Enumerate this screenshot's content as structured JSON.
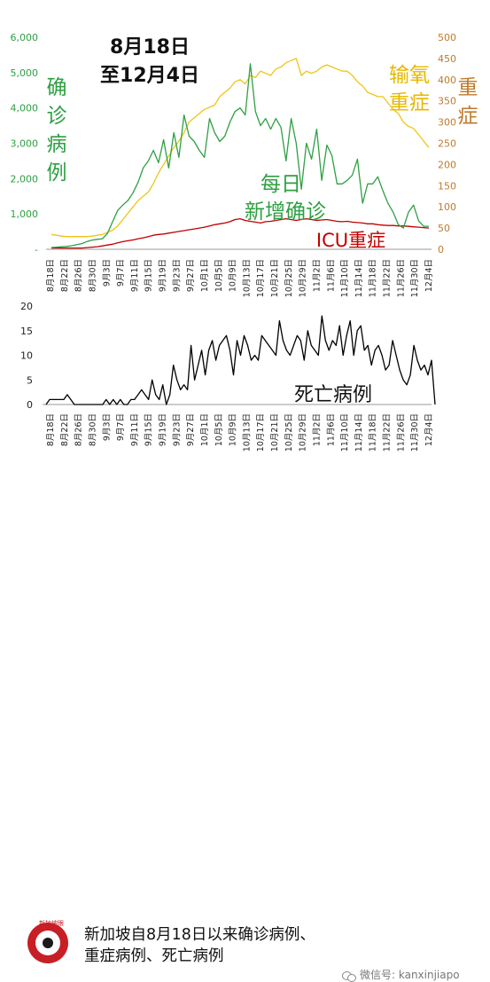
{
  "chart_data": [
    {
      "type": "line",
      "title_lines": [
        "8月18日",
        "至12月4日"
      ],
      "ylabel_left": [
        "确",
        "诊",
        "病",
        "例"
      ],
      "ylabel_right": [
        "重",
        "症"
      ],
      "left_axis": {
        "ticks": [
          0,
          1000,
          2000,
          3000,
          4000,
          5000,
          6000
        ],
        "tick_labels": [
          "-",
          "1,000",
          "2,000",
          "3,000",
          "4,000",
          "5,000",
          "6,000"
        ],
        "ylim": [
          0,
          6000
        ]
      },
      "right_axis": {
        "ticks": [
          0,
          50,
          100,
          150,
          200,
          250,
          300,
          350,
          400,
          450,
          500
        ],
        "tick_labels": [
          "0",
          "50",
          "100",
          "150",
          "200",
          "250",
          "300",
          "350",
          "400",
          "450",
          "500"
        ],
        "ylim": [
          0,
          500
        ]
      },
      "x_tick_labels": [
        "8月18日",
        "8月22日",
        "8月26日",
        "8月30日",
        "9月3日",
        "9月7日",
        "9月11日",
        "9月15日",
        "9月19日",
        "9月23日",
        "9月27日",
        "10月1日",
        "10月5日",
        "10月9日",
        "10月13日",
        "10月17日",
        "10月21日",
        "10月25日",
        "10月29日",
        "11月2日",
        "11月6日",
        "11月10日",
        "11月14日",
        "11月18日",
        "11月22日",
        "11月26日",
        "11月30日",
        "12月4日"
      ],
      "series": [
        {
          "name": "每日新增确诊",
          "label_lines": [
            "每日",
            "新增确诊"
          ],
          "axis": "left",
          "color": "#2ea043",
          "values": [
            50,
            60,
            70,
            80,
            100,
            130,
            160,
            220,
            260,
            280,
            300,
            450,
            780,
            1100,
            1250,
            1380,
            1600,
            1900,
            2300,
            2500,
            2800,
            2450,
            3100,
            2300,
            3300,
            2600,
            3800,
            3200,
            3050,
            2800,
            2600,
            3700,
            3300,
            3050,
            3200,
            3600,
            3900,
            4000,
            3800,
            5250,
            3900,
            3500,
            3700,
            3400,
            3700,
            3450,
            2500,
            3700,
            3000,
            1700,
            3000,
            2550,
            3400,
            1950,
            2950,
            2650,
            1850,
            1850,
            1950,
            2100,
            2550,
            1300,
            1850,
            1850,
            2050,
            1650,
            1300,
            1050,
            700,
            600,
            1050,
            1250,
            800,
            650,
            650
          ]
        },
        {
          "name": "输氧",
          "label_lines": [
            "输氧"
          ],
          "axis": "right",
          "color": "#f0c419",
          "values": [
            35,
            33,
            31,
            30,
            30,
            30,
            30,
            30,
            31,
            33,
            35,
            40,
            45,
            55,
            70,
            85,
            100,
            115,
            125,
            135,
            155,
            180,
            200,
            220,
            240,
            255,
            275,
            300,
            310,
            320,
            330,
            335,
            340,
            360,
            370,
            380,
            395,
            400,
            390,
            410,
            405,
            420,
            415,
            410,
            425,
            430,
            440,
            445,
            450,
            410,
            420,
            415,
            420,
            430,
            435,
            430,
            425,
            420,
            420,
            410,
            395,
            385,
            370,
            365,
            360,
            360,
            345,
            330,
            320,
            300,
            290,
            285,
            270,
            255,
            240
          ]
        },
        {
          "name": "ICU重症",
          "label_lines": [
            "ICU重症"
          ],
          "axis": "right",
          "color": "#c00000",
          "values": [
            3,
            3,
            3,
            3,
            3,
            3,
            3,
            4,
            5,
            6,
            8,
            10,
            12,
            15,
            18,
            20,
            22,
            25,
            27,
            30,
            33,
            35,
            36,
            38,
            40,
            42,
            44,
            46,
            48,
            50,
            52,
            55,
            58,
            60,
            62,
            65,
            70,
            72,
            68,
            66,
            64,
            62,
            65,
            66,
            68,
            70,
            72,
            70,
            68,
            70,
            72,
            70,
            68,
            69,
            70,
            68,
            66,
            65,
            66,
            64,
            63,
            62,
            60,
            60,
            58,
            57,
            56,
            56,
            55,
            55,
            54,
            53,
            52,
            51,
            50
          ]
        }
      ],
      "legend_text": [
        "重症"
      ]
    },
    {
      "type": "line",
      "ylabel": "",
      "ylim": [
        0,
        20
      ],
      "y_ticks": [
        0,
        5,
        10,
        15,
        20
      ],
      "y_tick_labels": [
        "0",
        "5",
        "10",
        "15",
        "20"
      ],
      "x_tick_labels": [
        "8月18日",
        "8月22日",
        "8月26日",
        "8月30日",
        "9月3日",
        "9月7日",
        "9月11日",
        "9月15日",
        "9月19日",
        "9月23日",
        "9月27日",
        "10月1日",
        "10月5日",
        "10月9日",
        "10月13日",
        "10月17日",
        "10月21日",
        "10月25日",
        "10月29日",
        "11月2日",
        "11月6日",
        "11月10日",
        "11月14日",
        "11月18日",
        "11月22日",
        "11月26日",
        "11月30日",
        "12月4日"
      ],
      "series": [
        {
          "name": "死亡病例",
          "color": "#000000",
          "values": [
            0,
            1,
            1,
            1,
            1,
            1,
            2,
            1,
            0,
            0,
            0,
            0,
            0,
            0,
            0,
            0,
            0,
            1,
            0,
            1,
            0,
            1,
            0,
            0,
            1,
            1,
            2,
            3,
            2,
            1,
            5,
            2,
            1,
            4,
            0,
            2,
            8,
            5,
            3,
            4,
            3,
            12,
            5,
            8,
            11,
            6,
            11,
            13,
            9,
            12,
            13,
            14,
            11,
            6,
            13,
            10,
            14,
            12,
            9,
            10,
            9,
            14,
            13,
            12,
            11,
            10,
            17,
            13,
            11,
            10,
            12,
            14,
            13,
            9,
            15,
            12,
            11,
            10,
            18,
            13,
            11,
            13,
            12,
            16,
            10,
            14,
            17,
            10,
            15,
            16,
            11,
            12,
            8,
            11,
            12,
            10,
            7,
            8,
            13,
            10,
            7,
            5,
            4,
            6,
            12,
            9,
            7,
            8,
            6,
            9,
            0
          ]
        }
      ]
    }
  ],
  "footer": {
    "logo_text": "新加坡眼",
    "caption_line1": "新加坡自8月18日以来确诊病例、",
    "caption_line2": "重症病例、死亡病例",
    "wechat_label": "微信号: kanxinjiapo"
  }
}
